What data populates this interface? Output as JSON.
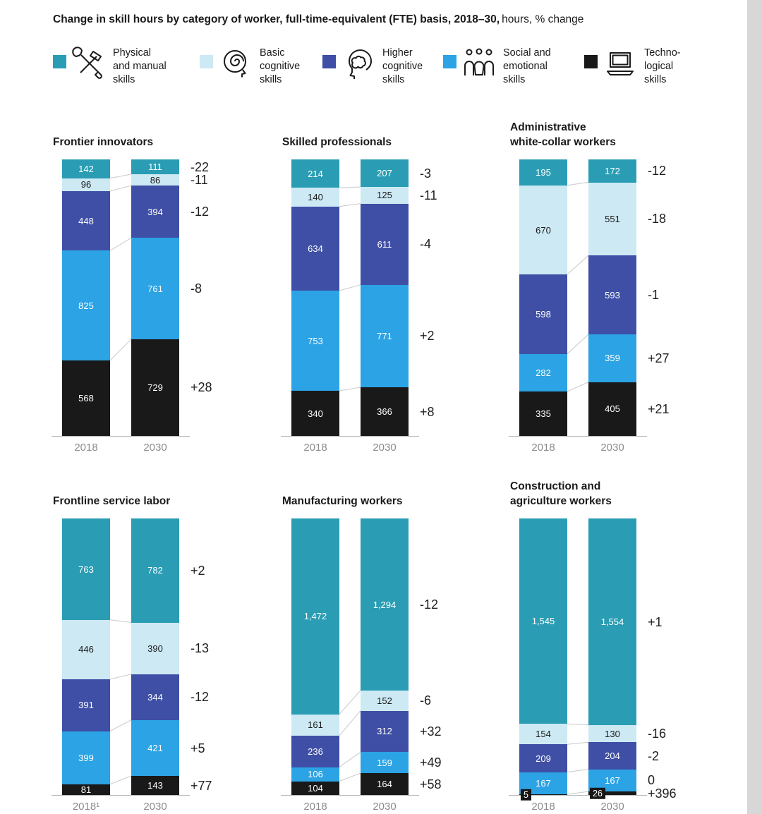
{
  "title": {
    "bold": "Change in skill hours by category of worker, full-time-equivalent (FTE) basis, 2018–30,",
    "regular": "hours, % change"
  },
  "legend": [
    {
      "label_lines": [
        "Physical",
        "and manual",
        "skills"
      ],
      "color": "#2a9db4",
      "icon": "tools-icon"
    },
    {
      "label_lines": [
        "Basic",
        "cognitive",
        "skills"
      ],
      "color": "#cde9f4",
      "icon": "head-spiral-icon"
    },
    {
      "label_lines": [
        "Higher",
        "cognitive",
        "skills"
      ],
      "color": "#3f4fa5",
      "icon": "brain-icon"
    },
    {
      "label_lines": [
        "Social and",
        "emotional",
        "skills"
      ],
      "color": "#2ba3e4",
      "icon": "people-icon"
    },
    {
      "label_lines": [
        "Techno-",
        "logical",
        "skills"
      ],
      "color": "#191919",
      "icon": "laptop-icon"
    }
  ],
  "chart_data": {
    "type": "bar",
    "subtype": "stacked-paired-columns",
    "unit": "skill hours, FTE basis",
    "years": [
      "2018",
      "2030"
    ],
    "stack_order_top_to_bottom": [
      "Physical and manual skills",
      "Basic cognitive skills",
      "Higher cognitive skills",
      "Social and emotional skills",
      "Technological skills"
    ],
    "charts": [
      {
        "title_lines": [
          "Frontier innovators"
        ],
        "x_labels": [
          "2018",
          "2030"
        ],
        "values_2018": [
          142,
          96,
          448,
          825,
          568
        ],
        "values_2030": [
          111,
          86,
          394,
          761,
          729
        ],
        "pct_change": [
          "-22",
          "-11",
          "-12",
          "-8",
          "+28"
        ]
      },
      {
        "title_lines": [
          "Skilled professionals"
        ],
        "x_labels": [
          "2018",
          "2030"
        ],
        "values_2018": [
          214,
          140,
          634,
          753,
          340
        ],
        "values_2030": [
          207,
          125,
          611,
          771,
          366
        ],
        "pct_change": [
          "-3",
          "-11",
          "-4",
          "+2",
          "+8"
        ]
      },
      {
        "title_lines": [
          "Administrative",
          "white-collar workers"
        ],
        "x_labels": [
          "2018",
          "2030"
        ],
        "values_2018": [
          195,
          670,
          598,
          282,
          335
        ],
        "values_2030": [
          172,
          551,
          593,
          359,
          405
        ],
        "pct_change": [
          "-12",
          "-18",
          "-1",
          "+27",
          "+21"
        ]
      },
      {
        "title_lines": [
          "Frontline service labor"
        ],
        "x_labels": [
          "2018¹",
          "2030"
        ],
        "values_2018": [
          763,
          446,
          391,
          399,
          81
        ],
        "values_2030": [
          782,
          390,
          344,
          421,
          143
        ],
        "pct_change": [
          "+2",
          "-13",
          "-12",
          "+5",
          "+77"
        ]
      },
      {
        "title_lines": [
          "Manufacturing workers"
        ],
        "x_labels": [
          "2018",
          "2030"
        ],
        "values_2018": [
          1472,
          161,
          236,
          106,
          104
        ],
        "values_2030": [
          1294,
          152,
          312,
          159,
          164
        ],
        "pct_change": [
          "-12",
          "-6",
          "+32",
          "+49",
          "+58"
        ]
      },
      {
        "title_lines": [
          "Construction and",
          "agriculture workers"
        ],
        "x_labels": [
          "2018",
          "2030"
        ],
        "values_2018": [
          1545,
          154,
          209,
          167,
          5
        ],
        "values_2030": [
          1554,
          130,
          204,
          167,
          26
        ],
        "pct_change": [
          "+1",
          "-16",
          "-2",
          "0",
          "+396"
        ]
      }
    ]
  }
}
